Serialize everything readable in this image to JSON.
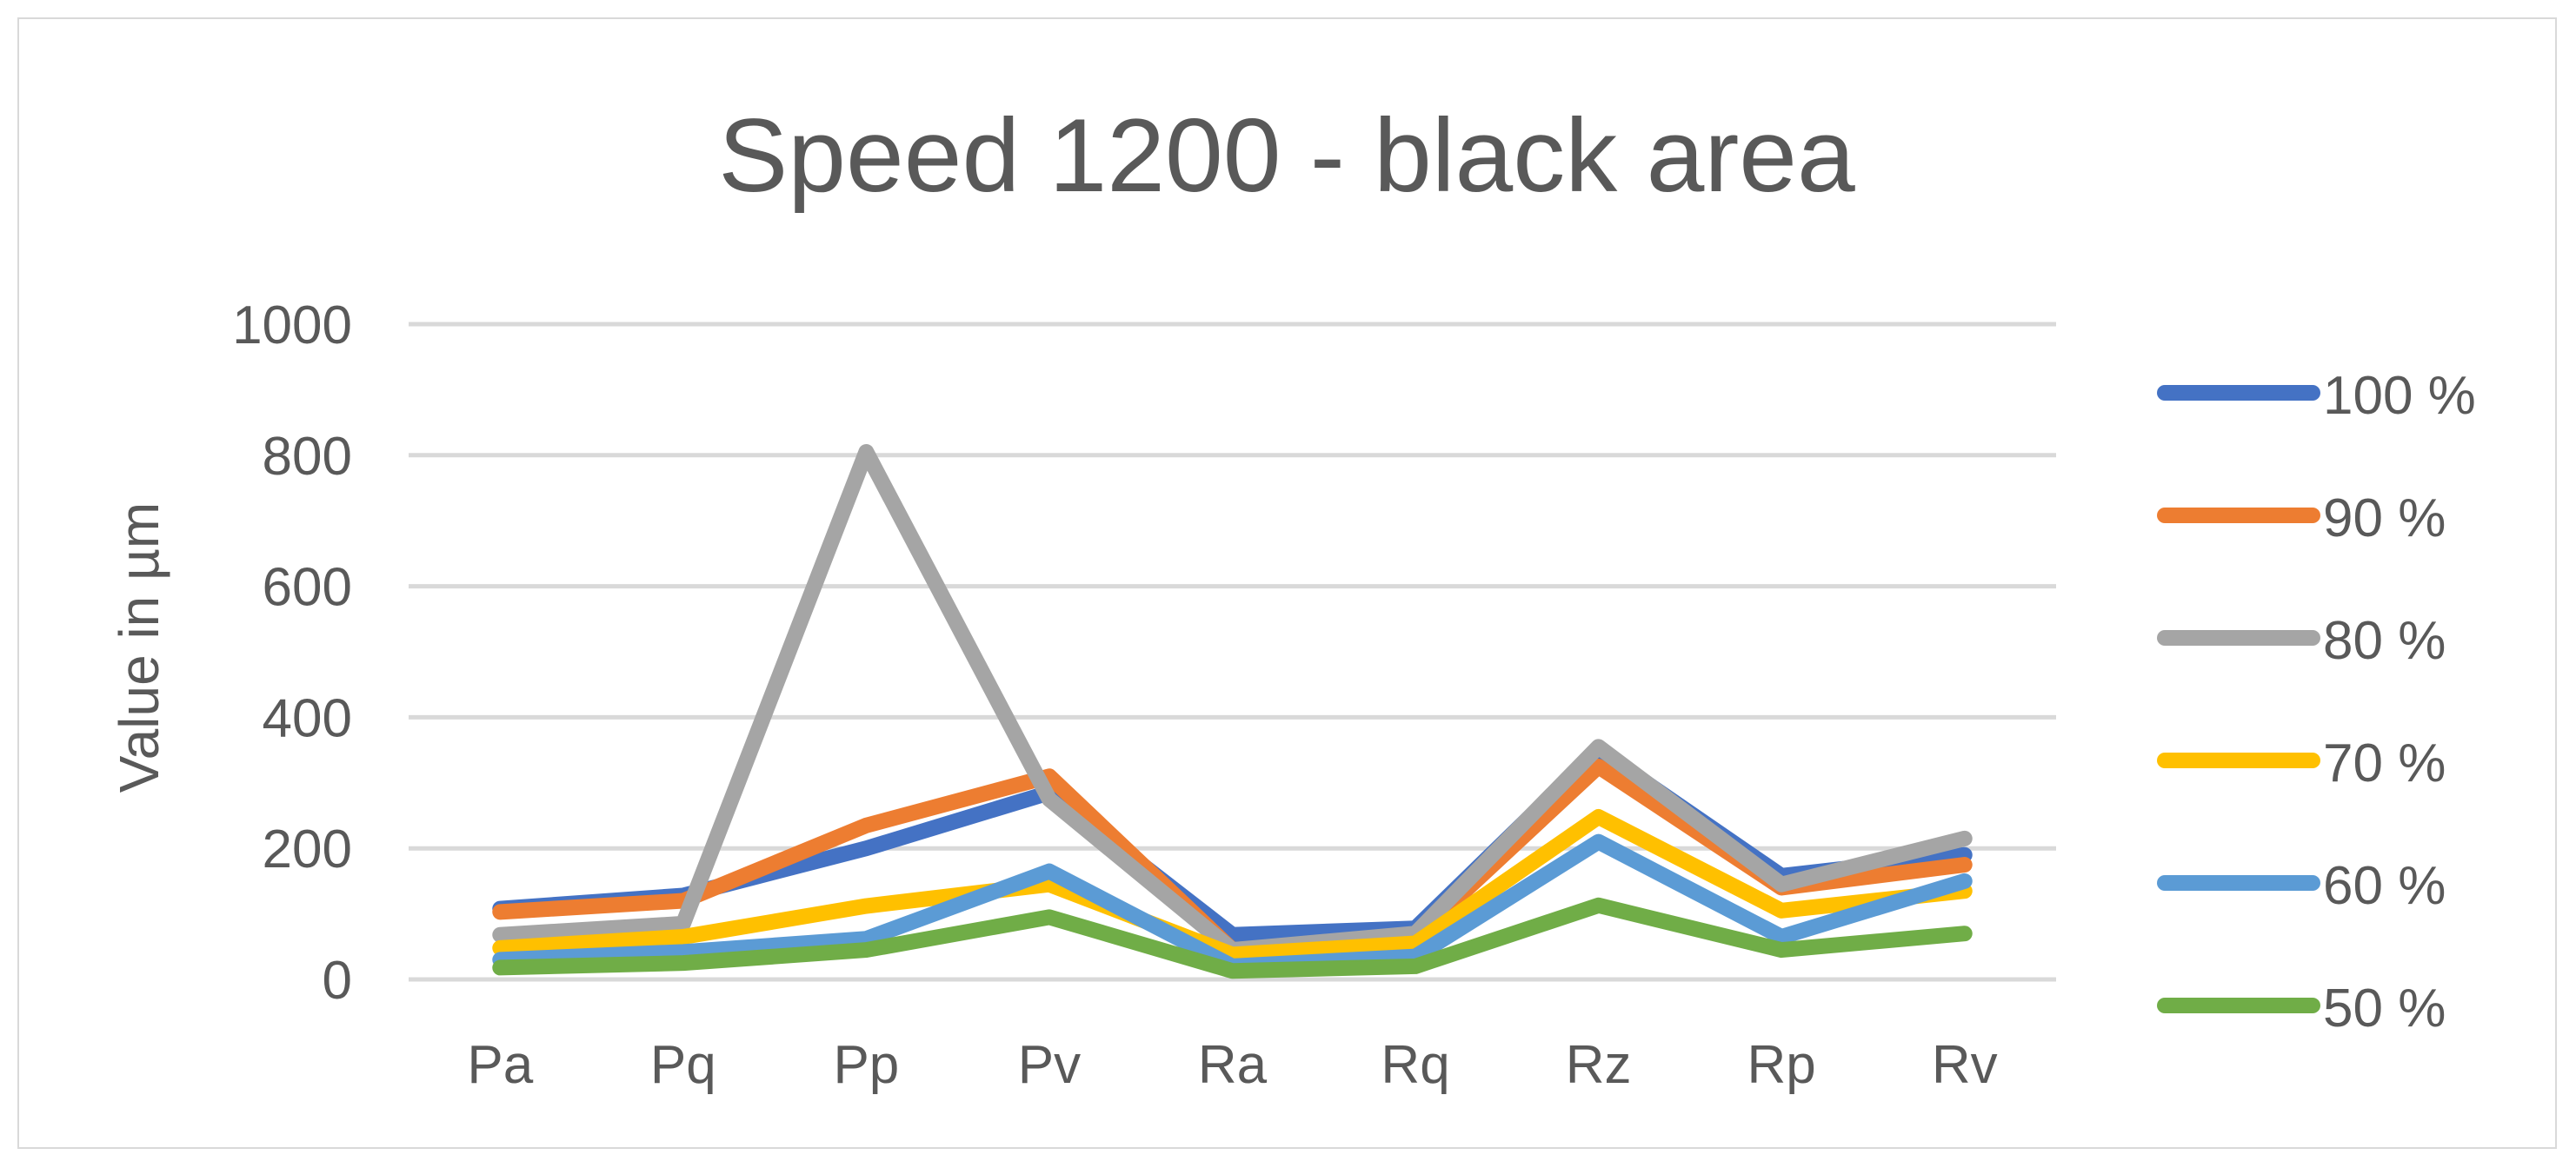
{
  "chart_data": {
    "type": "line",
    "title": "Speed 1200 - black area",
    "xlabel": "",
    "ylabel": "Value in µm",
    "ylim": [
      0,
      1000
    ],
    "yticks": [
      0,
      200,
      400,
      600,
      800,
      1000
    ],
    "grid": true,
    "legend_position": "right",
    "categories": [
      "Pa",
      "Pq",
      "Pp",
      "Pv",
      "Ra",
      "Rq",
      "Rz",
      "Rp",
      "Rv"
    ],
    "series": [
      {
        "name": "100 %",
        "color": "#4472C4",
        "values": [
          108,
          128,
          200,
          285,
          68,
          78,
          350,
          158,
          190
        ]
      },
      {
        "name": "90 %",
        "color": "#ED7D31",
        "values": [
          103,
          120,
          235,
          310,
          45,
          65,
          325,
          140,
          175
        ]
      },
      {
        "name": "80 %",
        "color": "#A5A5A5",
        "values": [
          68,
          85,
          805,
          275,
          45,
          70,
          355,
          145,
          215
        ]
      },
      {
        "name": "70 %",
        "color": "#FFC000",
        "values": [
          48,
          65,
          112,
          145,
          38,
          55,
          248,
          105,
          135
        ]
      },
      {
        "name": "60 %",
        "color": "#5B9BD5",
        "values": [
          30,
          42,
          62,
          165,
          20,
          35,
          210,
          65,
          150
        ]
      },
      {
        "name": "50 %",
        "color": "#70AD47",
        "values": [
          18,
          25,
          45,
          95,
          13,
          20,
          113,
          45,
          70
        ]
      }
    ]
  }
}
